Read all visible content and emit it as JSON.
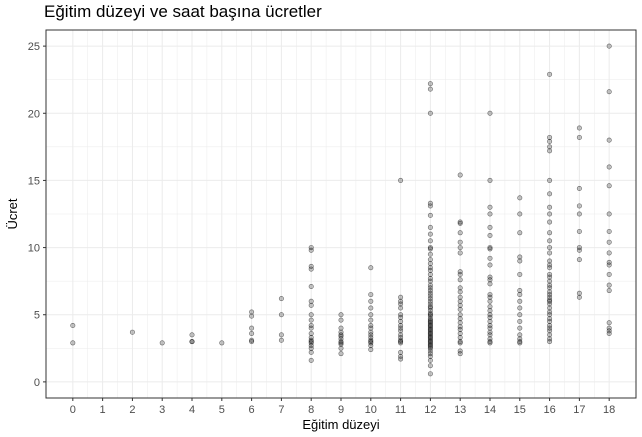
{
  "chart_data": {
    "type": "scatter",
    "title": "Eğitim düzeyi ve saat başına ücretler",
    "xlabel": "Eğitim düzeyi",
    "ylabel": "Ücret",
    "xlim": [
      -0.9,
      18.9
    ],
    "ylim": [
      -1.2,
      26.2
    ],
    "x_ticks": [
      0,
      1,
      2,
      3,
      4,
      5,
      6,
      7,
      8,
      9,
      10,
      11,
      12,
      13,
      14,
      15,
      16,
      17,
      18
    ],
    "y_ticks": [
      0,
      5,
      10,
      15,
      20,
      25
    ],
    "grid": true,
    "point_color": "#000000",
    "point_opacity": 0.22,
    "panel_border_color": "#333333",
    "grid_color": "#ebebeb",
    "points": [
      [
        0,
        4.2
      ],
      [
        0,
        2.9
      ],
      [
        2,
        3.7
      ],
      [
        3,
        2.9
      ],
      [
        4,
        3.5
      ],
      [
        4,
        3.0
      ],
      [
        4,
        3.0
      ],
      [
        5,
        2.9
      ],
      [
        6,
        5.2
      ],
      [
        6,
        4.9
      ],
      [
        6,
        4.0
      ],
      [
        6,
        3.6
      ],
      [
        6,
        3.1
      ],
      [
        6,
        3.0
      ],
      [
        7,
        6.2
      ],
      [
        7,
        5.0
      ],
      [
        7,
        3.5
      ],
      [
        7,
        3.1
      ],
      [
        8,
        10.0
      ],
      [
        8,
        9.8
      ],
      [
        8,
        8.6
      ],
      [
        8,
        8.4
      ],
      [
        8,
        7.1
      ],
      [
        8,
        6.0
      ],
      [
        8,
        5.7
      ],
      [
        8,
        5.0
      ],
      [
        8,
        4.6
      ],
      [
        8,
        4.2
      ],
      [
        8,
        4.0
      ],
      [
        8,
        3.6
      ],
      [
        8,
        3.3
      ],
      [
        8,
        3.1
      ],
      [
        8,
        3.0
      ],
      [
        8,
        2.9
      ],
      [
        8,
        2.7
      ],
      [
        8,
        2.5
      ],
      [
        8,
        2.2
      ],
      [
        8,
        1.6
      ],
      [
        9,
        5.0
      ],
      [
        9,
        4.6
      ],
      [
        9,
        4.0
      ],
      [
        9,
        3.7
      ],
      [
        9,
        3.5
      ],
      [
        9,
        3.4
      ],
      [
        9,
        3.2
      ],
      [
        9,
        3.0
      ],
      [
        9,
        2.9
      ],
      [
        9,
        2.8
      ],
      [
        9,
        2.5
      ],
      [
        9,
        2.1
      ],
      [
        10,
        8.5
      ],
      [
        10,
        6.5
      ],
      [
        10,
        6.0
      ],
      [
        10,
        5.5
      ],
      [
        10,
        5.0
      ],
      [
        10,
        4.6
      ],
      [
        10,
        4.2
      ],
      [
        10,
        4.0
      ],
      [
        10,
        3.7
      ],
      [
        10,
        3.5
      ],
      [
        10,
        3.3
      ],
      [
        10,
        3.1
      ],
      [
        10,
        3.0
      ],
      [
        10,
        2.9
      ],
      [
        10,
        2.7
      ],
      [
        10,
        2.4
      ],
      [
        11,
        15.0
      ],
      [
        11,
        6.3
      ],
      [
        11,
        6.0
      ],
      [
        11,
        5.8
      ],
      [
        11,
        5.5
      ],
      [
        11,
        5.0
      ],
      [
        11,
        4.8
      ],
      [
        11,
        4.5
      ],
      [
        11,
        4.2
      ],
      [
        11,
        4.0
      ],
      [
        11,
        3.8
      ],
      [
        11,
        3.5
      ],
      [
        11,
        3.3
      ],
      [
        11,
        3.1
      ],
      [
        11,
        3.0
      ],
      [
        11,
        2.9
      ],
      [
        11,
        2.2
      ],
      [
        11,
        1.9
      ],
      [
        11,
        1.7
      ],
      [
        12,
        22.2
      ],
      [
        12,
        21.8
      ],
      [
        12,
        20.0
      ],
      [
        12,
        13.3
      ],
      [
        12,
        13.1
      ],
      [
        12,
        12.4
      ],
      [
        12,
        11.5
      ],
      [
        12,
        11.0
      ],
      [
        12,
        10.5
      ],
      [
        12,
        10.0
      ],
      [
        12,
        9.9
      ],
      [
        12,
        9.5
      ],
      [
        12,
        9.1
      ],
      [
        12,
        8.8
      ],
      [
        12,
        8.5
      ],
      [
        12,
        8.3
      ],
      [
        12,
        8.0
      ],
      [
        12,
        7.7
      ],
      [
        12,
        7.5
      ],
      [
        12,
        7.2
      ],
      [
        12,
        7.0
      ],
      [
        12,
        6.8
      ],
      [
        12,
        6.6
      ],
      [
        12,
        6.4
      ],
      [
        12,
        6.2
      ],
      [
        12,
        6.0
      ],
      [
        12,
        5.8
      ],
      [
        12,
        5.6
      ],
      [
        12,
        5.5
      ],
      [
        12,
        5.3
      ],
      [
        12,
        5.1
      ],
      [
        12,
        5.0
      ],
      [
        12,
        4.9
      ],
      [
        12,
        4.7
      ],
      [
        12,
        4.6
      ],
      [
        12,
        4.5
      ],
      [
        12,
        4.4
      ],
      [
        12,
        4.3
      ],
      [
        12,
        4.2
      ],
      [
        12,
        4.1
      ],
      [
        12,
        4.0
      ],
      [
        12,
        3.9
      ],
      [
        12,
        3.8
      ],
      [
        12,
        3.7
      ],
      [
        12,
        3.6
      ],
      [
        12,
        3.5
      ],
      [
        12,
        3.4
      ],
      [
        12,
        3.3
      ],
      [
        12,
        3.2
      ],
      [
        12,
        3.1
      ],
      [
        12,
        3.0
      ],
      [
        12,
        2.9
      ],
      [
        12,
        2.8
      ],
      [
        12,
        2.7
      ],
      [
        12,
        2.6
      ],
      [
        12,
        2.5
      ],
      [
        12,
        2.3
      ],
      [
        12,
        2.1
      ],
      [
        12,
        1.9
      ],
      [
        12,
        1.6
      ],
      [
        12,
        1.2
      ],
      [
        12,
        0.6
      ],
      [
        13,
        15.4
      ],
      [
        13,
        11.9
      ],
      [
        13,
        11.8
      ],
      [
        13,
        11.1
      ],
      [
        13,
        10.4
      ],
      [
        13,
        10.0
      ],
      [
        13,
        9.6
      ],
      [
        13,
        8.2
      ],
      [
        13,
        8.0
      ],
      [
        13,
        7.6
      ],
      [
        13,
        7.0
      ],
      [
        13,
        6.7
      ],
      [
        13,
        6.3
      ],
      [
        13,
        6.0
      ],
      [
        13,
        5.7
      ],
      [
        13,
        5.4
      ],
      [
        13,
        5.0
      ],
      [
        13,
        4.7
      ],
      [
        13,
        4.4
      ],
      [
        13,
        4.1
      ],
      [
        13,
        3.9
      ],
      [
        13,
        3.6
      ],
      [
        13,
        3.3
      ],
      [
        13,
        3.0
      ],
      [
        13,
        2.9
      ],
      [
        13,
        2.3
      ],
      [
        13,
        2.1
      ],
      [
        14,
        20.0
      ],
      [
        14,
        15.0
      ],
      [
        14,
        13.0
      ],
      [
        14,
        12.5
      ],
      [
        14,
        11.5
      ],
      [
        14,
        10.9
      ],
      [
        14,
        10.0
      ],
      [
        14,
        9.9
      ],
      [
        14,
        9.2
      ],
      [
        14,
        8.7
      ],
      [
        14,
        7.8
      ],
      [
        14,
        7.6
      ],
      [
        14,
        7.3
      ],
      [
        14,
        6.5
      ],
      [
        14,
        6.3
      ],
      [
        14,
        6.0
      ],
      [
        14,
        5.6
      ],
      [
        14,
        5.3
      ],
      [
        14,
        5.0
      ],
      [
        14,
        4.8
      ],
      [
        14,
        4.5
      ],
      [
        14,
        4.2
      ],
      [
        14,
        4.0
      ],
      [
        14,
        3.7
      ],
      [
        14,
        3.5
      ],
      [
        14,
        3.2
      ],
      [
        14,
        3.0
      ],
      [
        14,
        2.9
      ],
      [
        15,
        13.7
      ],
      [
        15,
        12.5
      ],
      [
        15,
        11.1
      ],
      [
        15,
        9.3
      ],
      [
        15,
        9.0
      ],
      [
        15,
        8.0
      ],
      [
        15,
        6.8
      ],
      [
        15,
        6.5
      ],
      [
        15,
        6.0
      ],
      [
        15,
        5.5
      ],
      [
        15,
        5.0
      ],
      [
        15,
        4.5
      ],
      [
        15,
        4.0
      ],
      [
        15,
        3.5
      ],
      [
        15,
        3.2
      ],
      [
        15,
        3.0
      ],
      [
        15,
        2.9
      ],
      [
        16,
        22.9
      ],
      [
        16,
        18.2
      ],
      [
        16,
        17.9
      ],
      [
        16,
        17.5
      ],
      [
        16,
        17.2
      ],
      [
        16,
        15.0
      ],
      [
        16,
        14.0
      ],
      [
        16,
        13.0
      ],
      [
        16,
        12.5
      ],
      [
        16,
        11.9
      ],
      [
        16,
        11.1
      ],
      [
        16,
        10.5
      ],
      [
        16,
        10.0
      ],
      [
        16,
        9.6
      ],
      [
        16,
        9.0
      ],
      [
        16,
        8.7
      ],
      [
        16,
        8.5
      ],
      [
        16,
        8.0
      ],
      [
        16,
        7.8
      ],
      [
        16,
        7.5
      ],
      [
        16,
        7.2
      ],
      [
        16,
        7.0
      ],
      [
        16,
        6.7
      ],
      [
        16,
        6.5
      ],
      [
        16,
        6.3
      ],
      [
        16,
        6.1
      ],
      [
        16,
        6.0
      ],
      [
        16,
        5.8
      ],
      [
        16,
        5.5
      ],
      [
        16,
        5.2
      ],
      [
        16,
        5.0
      ],
      [
        16,
        4.7
      ],
      [
        16,
        4.5
      ],
      [
        16,
        4.2
      ],
      [
        16,
        4.0
      ],
      [
        16,
        3.8
      ],
      [
        16,
        3.5
      ],
      [
        16,
        3.2
      ],
      [
        16,
        3.0
      ],
      [
        17,
        18.9
      ],
      [
        17,
        18.2
      ],
      [
        17,
        14.4
      ],
      [
        17,
        13.1
      ],
      [
        17,
        12.5
      ],
      [
        17,
        11.2
      ],
      [
        17,
        10.0
      ],
      [
        17,
        9.8
      ],
      [
        17,
        9.1
      ],
      [
        17,
        6.6
      ],
      [
        17,
        6.3
      ],
      [
        18,
        25.0
      ],
      [
        18,
        21.6
      ],
      [
        18,
        18.0
      ],
      [
        18,
        16.0
      ],
      [
        18,
        14.6
      ],
      [
        18,
        12.5
      ],
      [
        18,
        11.2
      ],
      [
        18,
        10.4
      ],
      [
        18,
        9.6
      ],
      [
        18,
        8.9
      ],
      [
        18,
        8.7
      ],
      [
        18,
        8.0
      ],
      [
        18,
        7.2
      ],
      [
        18,
        6.8
      ],
      [
        18,
        4.4
      ],
      [
        18,
        4.0
      ],
      [
        18,
        3.8
      ],
      [
        18,
        3.6
      ]
    ]
  }
}
